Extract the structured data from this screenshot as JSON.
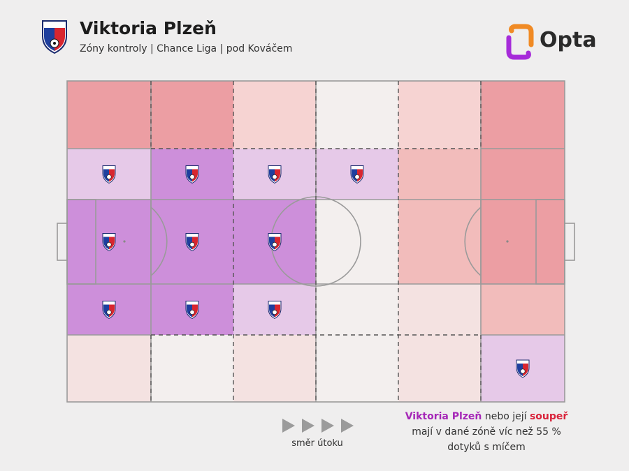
{
  "header": {
    "title": "Viktoria Plzeň",
    "subtitle": "Zóny kontroly | Chance Liga | pod Kováčem",
    "crest_icon": "viktoria-plzen-crest-icon"
  },
  "brand": {
    "name": "Opta",
    "logo_icon": "opta-logo-icon",
    "logo_color": "#a62bd9"
  },
  "colors": {
    "team": "#cd8fda",
    "team_light": "#e6c9e8",
    "opponent": "#ec9ea3",
    "opponent_light": "#f6d3d2",
    "neutral": "#f3efee"
  },
  "zones": {
    "columns": 6,
    "rows": 5,
    "cells": [
      [
        "opp_strong",
        "opp_strong",
        "opp_light",
        "neutral",
        "opp_light",
        "opp_strong"
      ],
      [
        "team_light",
        "team",
        "team_light",
        "team_light",
        "opp_mid",
        "opp_strong"
      ],
      [
        "team",
        "team",
        "team",
        "neutral",
        "opp_mid",
        "opp_strong"
      ],
      [
        "team",
        "team",
        "team_light",
        "neutral",
        "opp_faint",
        "opp_mid"
      ],
      [
        "opp_faint",
        "neutral",
        "opp_faint",
        "neutral",
        "opp_faint",
        "team_light"
      ]
    ]
  },
  "legend": {
    "team_name": "Viktoria Plzeň",
    "part1": " nebo její ",
    "opponent_word": "soupeř",
    "part2": "mají v dané zóně víc než 55 %",
    "part3": "dotyků s míčem"
  },
  "direction": {
    "caption": "směr útoku",
    "arrow_icon": "play-arrow-icon"
  }
}
